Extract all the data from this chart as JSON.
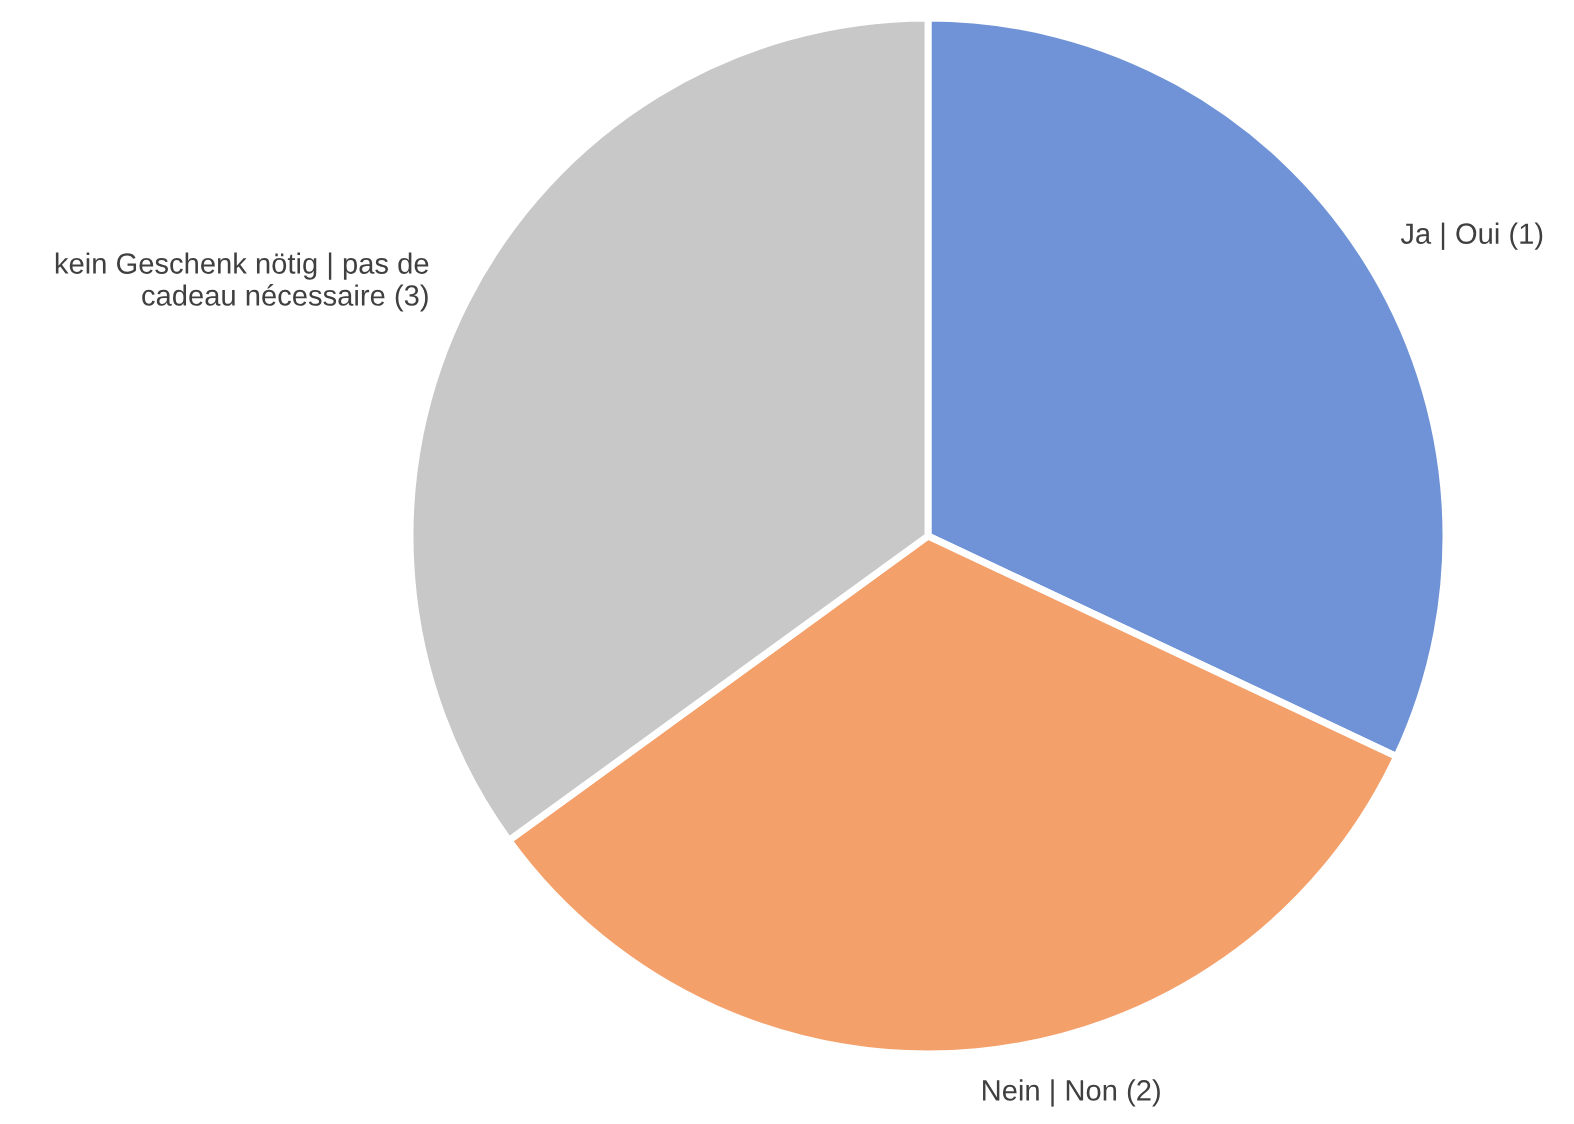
{
  "chart_data": {
    "type": "pie",
    "categories": [
      "Ja | Oui (1)",
      "Nein | Non (2)",
      "kein Geschenk nötig | pas de cadeau nécessaire (3)"
    ],
    "values": [
      32,
      33,
      35
    ],
    "colors": [
      "#6f93d6",
      "#f4a06a",
      "#c8c8c8"
    ]
  }
}
